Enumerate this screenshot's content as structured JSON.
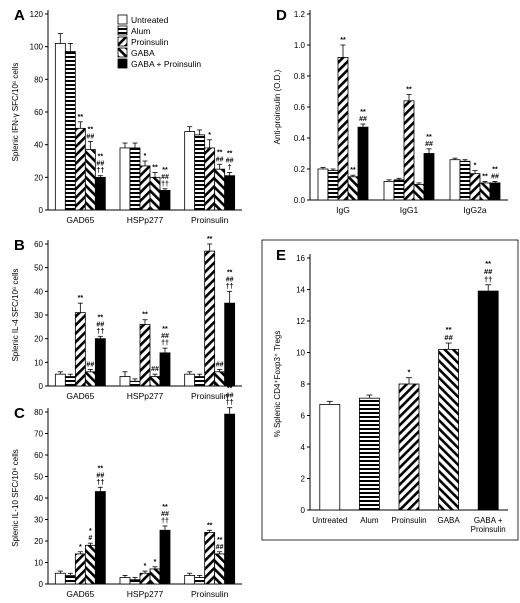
{
  "legend": {
    "items": [
      {
        "label": "Untreated",
        "pattern": "white"
      },
      {
        "label": "Alum",
        "pattern": "hstripe"
      },
      {
        "label": "Proinsulin",
        "pattern": "dfwd"
      },
      {
        "label": "GABA",
        "pattern": "dback"
      },
      {
        "label": "GABA + Proinsulin",
        "pattern": "black"
      }
    ]
  },
  "chart_data": [
    {
      "panel": "A",
      "type": "bar",
      "ylabel": "Splenic IFN-γ SFC/10⁶ cells",
      "ylim": [
        0,
        120
      ],
      "yticks": [
        0,
        20,
        40,
        60,
        80,
        100,
        120
      ],
      "categories": [
        "GAD65",
        "HSPp277",
        "Proinsulin"
      ],
      "series": [
        {
          "name": "Untreated",
          "values": [
            102,
            38,
            48
          ],
          "errors": [
            6,
            3,
            3
          ]
        },
        {
          "name": "Alum",
          "values": [
            97,
            38,
            46
          ],
          "errors": [
            5,
            3,
            3
          ]
        },
        {
          "name": "Proinsulin",
          "values": [
            50,
            27,
            38
          ],
          "errors": [
            4,
            3,
            5
          ]
        },
        {
          "name": "GABA",
          "values": [
            37,
            20,
            25
          ],
          "errors": [
            5,
            3,
            3
          ]
        },
        {
          "name": "GABA + Proinsulin",
          "values": [
            20,
            12,
            21
          ],
          "errors": [
            1,
            1,
            2
          ]
        }
      ],
      "annotations": [
        [
          "",
          "",
          "**",
          "**\n##",
          "**\n##\n††"
        ],
        [
          "",
          "",
          "*",
          "**",
          "**\n##\n††"
        ],
        [
          "",
          "",
          "*",
          "**\n##",
          "**\n##\n†"
        ]
      ]
    },
    {
      "panel": "B",
      "type": "bar",
      "ylabel": "Splenic IL-4 SFC/10⁶ cells",
      "ylim": [
        0,
        60
      ],
      "yticks": [
        0,
        10,
        20,
        30,
        40,
        50,
        60
      ],
      "categories": [
        "GAD65",
        "HSPp277",
        "Proinsulin"
      ],
      "series": [
        {
          "name": "Untreated",
          "values": [
            5,
            4,
            5
          ],
          "errors": [
            1,
            2,
            1
          ]
        },
        {
          "name": "Alum",
          "values": [
            4,
            2,
            4
          ],
          "errors": [
            1,
            1,
            1
          ]
        },
        {
          "name": "Proinsulin",
          "values": [
            31,
            26,
            57
          ],
          "errors": [
            4,
            2,
            3
          ]
        },
        {
          "name": "GABA",
          "values": [
            6,
            4,
            6
          ],
          "errors": [
            1,
            1,
            1
          ]
        },
        {
          "name": "GABA + Proinsulin",
          "values": [
            20,
            14,
            35
          ],
          "errors": [
            1,
            2,
            5
          ]
        }
      ],
      "annotations": [
        [
          "",
          "",
          "**",
          "##",
          "**\n##\n††"
        ],
        [
          "",
          "",
          "**",
          "##",
          "**\n##\n††"
        ],
        [
          "",
          "",
          "**",
          "##",
          "**\n##\n††"
        ]
      ]
    },
    {
      "panel": "C",
      "type": "bar",
      "ylabel": "Splenic IL-10 SFC/10⁶ cells",
      "ylim": [
        0,
        80
      ],
      "yticks": [
        0,
        10,
        20,
        30,
        40,
        50,
        60,
        70,
        80
      ],
      "categories": [
        "GAD65",
        "HSPp277",
        "Proinsulin"
      ],
      "series": [
        {
          "name": "Untreated",
          "values": [
            5,
            3,
            4
          ],
          "errors": [
            1,
            1,
            1
          ]
        },
        {
          "name": "Alum",
          "values": [
            4,
            2,
            3
          ],
          "errors": [
            1,
            1,
            1
          ]
        },
        {
          "name": "Proinsulin",
          "values": [
            14,
            5,
            24
          ],
          "errors": [
            1,
            1,
            1
          ]
        },
        {
          "name": "GABA",
          "values": [
            18,
            7,
            14
          ],
          "errors": [
            1,
            1,
            1
          ]
        },
        {
          "name": "GABA + Proinsulin",
          "values": [
            43,
            25,
            79
          ],
          "errors": [
            2,
            2,
            3
          ]
        }
      ],
      "annotations": [
        [
          "",
          "",
          "*",
          "*\n#",
          "**\n##\n††"
        ],
        [
          "",
          "",
          "*",
          "*",
          "**\n##\n††"
        ],
        [
          "",
          "",
          "**",
          "**\n##",
          "**\n##\n††"
        ]
      ]
    },
    {
      "panel": "D",
      "type": "bar",
      "ylabel": "Anti-proinsulin (O.D.)",
      "ylim": [
        0,
        1.2
      ],
      "yticks": [
        0,
        0.2,
        0.4,
        0.6,
        0.8,
        1.0,
        1.2
      ],
      "categories": [
        "IgG",
        "IgG1",
        "IgG2a"
      ],
      "series": [
        {
          "name": "Untreated",
          "values": [
            0.2,
            0.12,
            0.26
          ],
          "errors": [
            0.01,
            0.01,
            0.01
          ]
        },
        {
          "name": "Alum",
          "values": [
            0.19,
            0.13,
            0.25
          ],
          "errors": [
            0.01,
            0.01,
            0.01
          ]
        },
        {
          "name": "Proinsulin",
          "values": [
            0.92,
            0.64,
            0.17
          ],
          "errors": [
            0.08,
            0.04,
            0.02
          ]
        },
        {
          "name": "GABA",
          "values": [
            0.15,
            0.1,
            0.11
          ],
          "errors": [
            0.01,
            0.01,
            0.01
          ]
        },
        {
          "name": "GABA + Proinsulin",
          "values": [
            0.47,
            0.3,
            0.11
          ],
          "errors": [
            0.02,
            0.03,
            0.01
          ]
        }
      ],
      "annotations": [
        [
          "",
          "",
          "**",
          "**",
          "**\n##"
        ],
        [
          "",
          "",
          "**",
          "",
          "**\n##"
        ],
        [
          "",
          "",
          "*",
          "**",
          "**\n##"
        ]
      ]
    },
    {
      "panel": "E",
      "type": "bar",
      "ylabel": "% Splenic CD4⁺Foxp3⁺ Tregs",
      "ylim": [
        0,
        16
      ],
      "yticks": [
        0,
        2,
        4,
        6,
        8,
        10,
        12,
        14,
        16
      ],
      "categories": [
        "Untreated",
        "Alum",
        "Proinsulin",
        "GABA",
        "GABA +\nProinsulin"
      ],
      "patterns": [
        "white",
        "hstripe",
        "dfwd",
        "dback",
        "black"
      ],
      "values": [
        6.7,
        7.1,
        8.0,
        10.2,
        13.9
      ],
      "errors": [
        0.2,
        0.2,
        0.4,
        0.4,
        0.4
      ],
      "annotations": [
        "",
        "",
        "*",
        "**\n##",
        "**\n##\n††"
      ]
    }
  ]
}
